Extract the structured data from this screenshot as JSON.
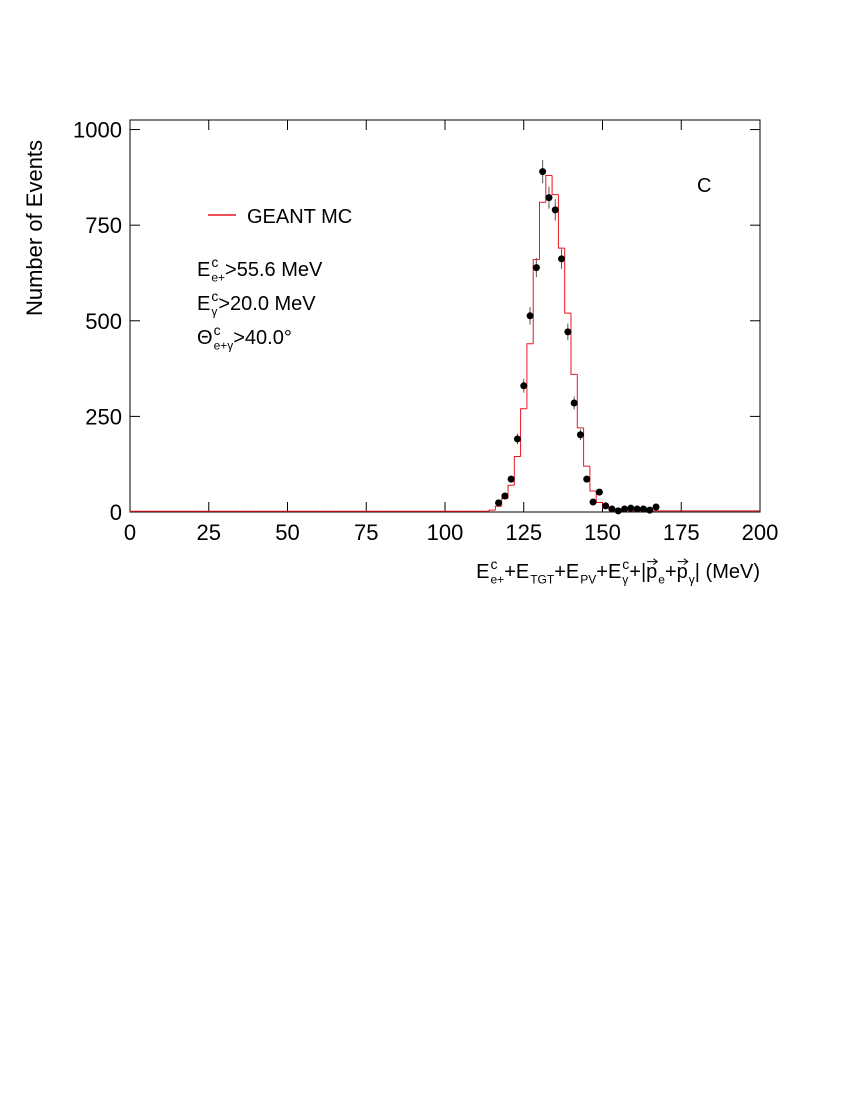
{
  "chart_data": {
    "type": "histogram",
    "bins": [
      0,
      2,
      4,
      6,
      8,
      10,
      12,
      14,
      16,
      18,
      20,
      22,
      24,
      26,
      28,
      30,
      32,
      34,
      36,
      38,
      40,
      42,
      44,
      46,
      48,
      50,
      52,
      54,
      56,
      58,
      60,
      62,
      64,
      66,
      68,
      70,
      72,
      74,
      76,
      78,
      80,
      82,
      84,
      86,
      88,
      90,
      92,
      94,
      96,
      98,
      100,
      102,
      104,
      106,
      108,
      110,
      112,
      114,
      116,
      118,
      120,
      122,
      124,
      126,
      128,
      130,
      132,
      134,
      136,
      138,
      140,
      142,
      144,
      146,
      148,
      150,
      152,
      154,
      156,
      158,
      160,
      162,
      164,
      166,
      168,
      170,
      172,
      174,
      176,
      178,
      180,
      182,
      184,
      186,
      188,
      190,
      192,
      194,
      196,
      198,
      200
    ],
    "series": [
      {
        "name": "GEANT MC",
        "color": "#e8141e",
        "values": [
          2,
          2,
          2,
          2,
          2,
          2,
          2,
          2,
          2,
          2,
          2,
          2,
          2,
          2,
          2,
          2,
          2,
          2,
          2,
          2,
          2,
          2,
          2,
          2,
          2,
          2,
          2,
          2,
          2,
          2,
          2,
          2,
          2,
          2,
          2,
          2,
          2,
          2,
          2,
          2,
          2,
          2,
          2,
          2,
          2,
          2,
          2,
          2,
          2,
          2,
          2,
          2,
          2,
          2,
          2,
          2,
          2,
          5,
          15,
          35,
          70,
          145,
          270,
          440,
          660,
          810,
          880,
          830,
          690,
          520,
          360,
          220,
          120,
          55,
          25,
          12,
          6,
          4,
          3,
          3,
          3,
          3,
          3,
          3,
          3,
          3,
          3,
          3,
          3,
          3,
          3,
          3,
          3,
          3,
          3,
          3,
          3,
          3,
          3,
          3
        ]
      }
    ],
    "points": {
      "color": "#000000",
      "x": [
        117,
        119,
        121,
        123,
        125,
        127,
        129,
        131,
        133,
        135,
        137,
        139,
        141,
        143,
        145,
        147,
        149,
        151,
        153,
        155,
        157,
        159,
        161,
        163,
        165,
        167
      ],
      "values": [
        24,
        42,
        86,
        191,
        330,
        513,
        639,
        890,
        822,
        790,
        662,
        471,
        285,
        202,
        86,
        26,
        52,
        16,
        8,
        3,
        8,
        10,
        8,
        8,
        5,
        13
      ],
      "errors": [
        5,
        6,
        9,
        14,
        18,
        23,
        25,
        30,
        29,
        28,
        26,
        22,
        17,
        14,
        9,
        5,
        7,
        4,
        3,
        2,
        3,
        3,
        3,
        3,
        2,
        4
      ]
    },
    "annotation": "C",
    "cuts": [
      [
        {
          "text": "E",
          "sup": "c",
          "sub": "e+"
        },
        {
          "text": ">55.6 MeV"
        }
      ],
      [
        {
          "text": "E",
          "sup": "c",
          "sub": "γ"
        },
        {
          "text": ">20.0 MeV"
        }
      ],
      [
        {
          "text": "Θ",
          "sup": "c",
          "sub": "e+γ"
        },
        {
          "text": ">40.0°"
        }
      ]
    ],
    "x_label": [
      {
        "text": "E",
        "sup": "c",
        "sub": "e+"
      },
      {
        "text": "+E",
        "sub": "TGT"
      },
      {
        "text": "+E",
        "sub": "PV"
      },
      {
        "text": "+E",
        "sup": "c",
        "sub": "γ"
      },
      {
        "text": "+|"
      },
      {
        "text": "p",
        "vec": true,
        "sub": "e"
      },
      {
        "text": "+"
      },
      {
        "text": "p",
        "vec": true,
        "sub": "γ"
      },
      {
        "text": "| (MeV)"
      }
    ],
    "y_label": "Number of Events",
    "xlim": [
      0,
      200
    ],
    "xticks": [
      0,
      25,
      50,
      75,
      100,
      125,
      150,
      175,
      200
    ],
    "ylim": [
      0,
      1025
    ],
    "yticks": [
      0,
      250,
      500,
      750,
      1000
    ]
  }
}
